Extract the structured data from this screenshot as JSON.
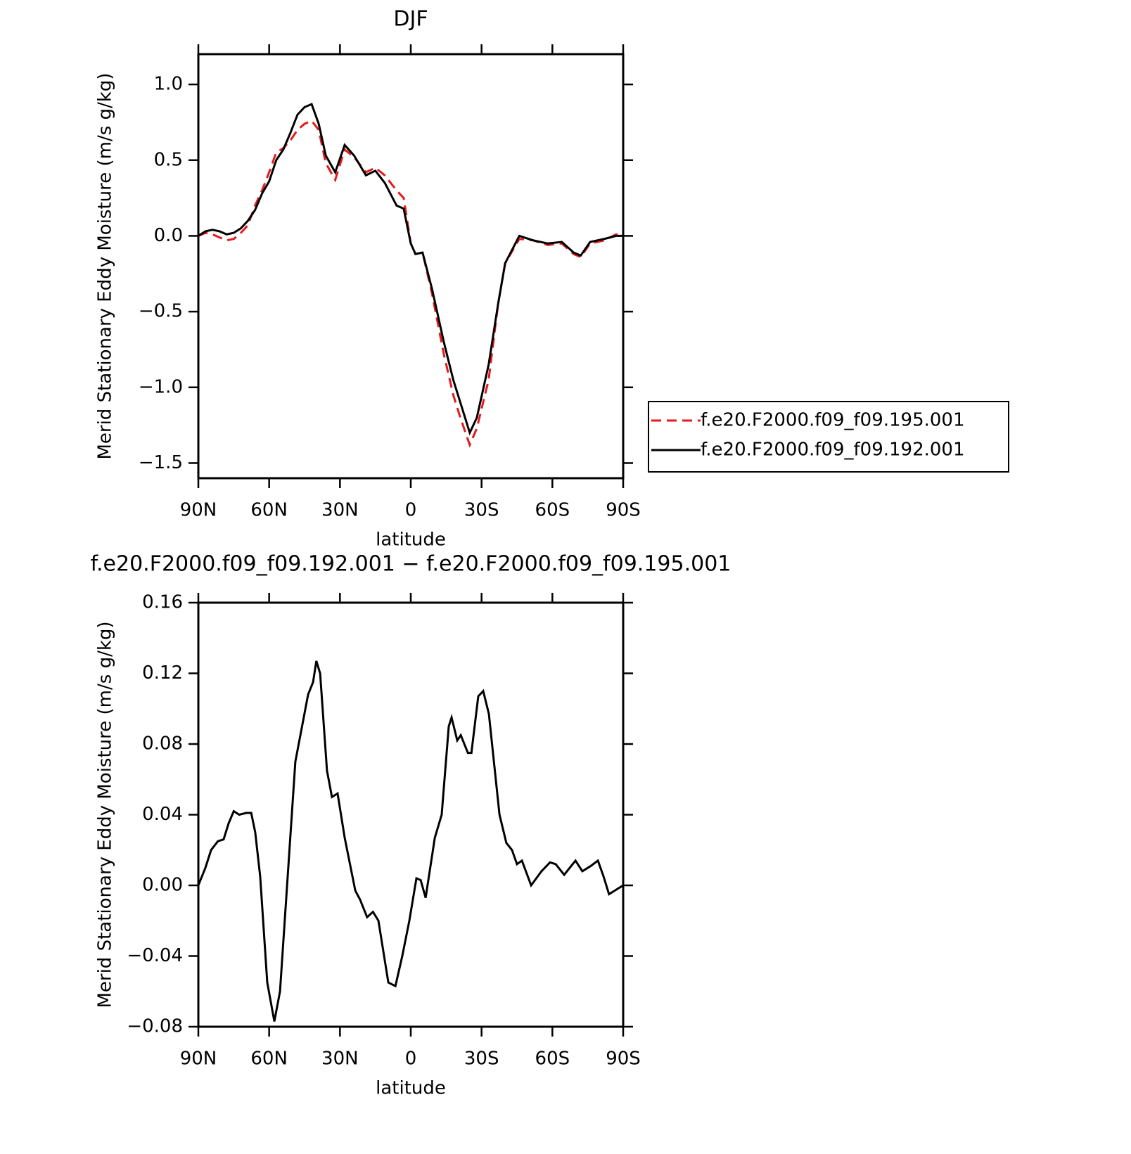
{
  "chart_data": [
    {
      "type": "line",
      "title": "DJF",
      "xlabel": "latitude",
      "ylabel": "Merid Stationary Eddy Moisture (m/s g/kg)",
      "x": [
        90,
        87,
        84,
        81,
        78,
        75,
        72,
        69,
        66,
        63,
        60,
        57,
        54,
        51,
        48,
        45,
        42,
        39,
        36,
        32,
        28,
        24,
        19,
        15,
        11,
        6,
        3,
        0,
        -2,
        -5,
        -9,
        -14,
        -18,
        -21,
        -25,
        -28,
        -33,
        -37,
        -40,
        -46,
        -52,
        -58,
        -64,
        -69,
        -72,
        -76,
        -82,
        -87,
        -90
      ],
      "series": [
        {
          "name": "f.e20.F2000.f09_f09.195.001",
          "color": "#e41a1c",
          "linestyle": "dashed",
          "values": [
            0,
            0.02,
            0.01,
            -0.01,
            -0.03,
            -0.02,
            0.02,
            0.07,
            0.2,
            0.3,
            0.42,
            0.55,
            0.58,
            0.63,
            0.7,
            0.74,
            0.76,
            0.7,
            0.48,
            0.37,
            0.57,
            0.52,
            0.42,
            0.45,
            0.4,
            0.3,
            0.25,
            -0.05,
            -0.12,
            -0.11,
            -0.38,
            -0.78,
            -1.05,
            -1.2,
            -1.38,
            -1.27,
            -0.95,
            -0.45,
            -0.18,
            -0.02,
            -0.03,
            -0.06,
            -0.05,
            -0.12,
            -0.14,
            -0.05,
            -0.03,
            0.01,
            0
          ]
        },
        {
          "name": "f.e20.F2000.f09_f09.192.001",
          "color": "#000000",
          "linestyle": "solid",
          "values": [
            0,
            0.03,
            0.04,
            0.03,
            0.01,
            0.02,
            0.05,
            0.1,
            0.17,
            0.28,
            0.36,
            0.5,
            0.57,
            0.68,
            0.8,
            0.85,
            0.87,
            0.74,
            0.53,
            0.42,
            0.6,
            0.53,
            0.4,
            0.43,
            0.35,
            0.2,
            0.18,
            -0.05,
            -0.12,
            -0.11,
            -0.35,
            -0.7,
            -0.95,
            -1.1,
            -1.3,
            -1.2,
            -0.85,
            -0.45,
            -0.18,
            0,
            -0.03,
            -0.05,
            -0.04,
            -0.11,
            -0.13,
            -0.04,
            -0.02,
            0,
            0
          ]
        }
      ],
      "xlim": [
        90,
        -90
      ],
      "xticks": [
        {
          "value": 90,
          "label": "90N"
        },
        {
          "value": 60,
          "label": "60N"
        },
        {
          "value": 30,
          "label": "30N"
        },
        0,
        {
          "value": -30,
          "label": "30S"
        },
        {
          "value": -60,
          "label": "60S"
        },
        {
          "value": -90,
          "label": "90S"
        }
      ],
      "ylim": [
        -1.6,
        1.2
      ],
      "yticks": [
        {
          "value": 1,
          "label": "1.0"
        },
        0.5,
        {
          "value": 0,
          "label": "0.0"
        },
        {
          "value": -0.5,
          "label": "−0.5"
        },
        {
          "value": -1,
          "label": "−1.0"
        },
        {
          "value": -1.5,
          "label": "−1.5"
        }
      ],
      "legend": "right"
    },
    {
      "type": "line",
      "title": "f.e20.F2000.f09_f09.192.001 − f.e20.F2000.f09_f09.195.001",
      "xlabel": "latitude",
      "ylabel": "Merid Stationary Eddy Moisture (m/s g/kg)",
      "x": [
        90,
        87,
        84.6,
        81.7,
        79.3,
        77.2,
        75,
        72.7,
        69.7,
        67.6,
        65.9,
        63.8,
        60.8,
        57.8,
        55.4,
        52.4,
        48.9,
        43.5,
        41.4,
        40,
        38.4,
        35.5,
        33.4,
        31,
        28,
        23.5,
        21.5,
        18.5,
        16,
        13.7,
        9.5,
        6.5,
        3.6,
        0.6,
        -2.4,
        -4.2,
        -6.3,
        -10.2,
        -13.1,
        -16.1,
        -17.3,
        -19.7,
        -21.2,
        -24.2,
        -25.7,
        -28.6,
        -30.7,
        -33.1,
        -37.6,
        -40.5,
        -42.9,
        -45,
        -47.1,
        -51,
        -55.4,
        -59,
        -61.4,
        -65,
        -69.8,
        -72.7,
        -76.3,
        -79.3,
        -81.7,
        -84,
        -86.4,
        -90
      ],
      "color": "#000000",
      "linestyle": "solid",
      "values": [
        0,
        0.01,
        0.02,
        0.025,
        0.026,
        0.035,
        0.042,
        0.04,
        0.041,
        0.041,
        0.03,
        0.005,
        -0.055,
        -0.077,
        -0.06,
        0,
        0.07,
        0.108,
        0.115,
        0.127,
        0.12,
        0.065,
        0.05,
        0.052,
        0.027,
        -0.003,
        -0.008,
        -0.018,
        -0.015,
        -0.02,
        -0.055,
        -0.057,
        -0.04,
        -0.02,
        0.004,
        0.003,
        -0.007,
        0.027,
        0.04,
        0.09,
        0.095,
        0.082,
        0.085,
        0.075,
        0.075,
        0.107,
        0.11,
        0.097,
        0.04,
        0.024,
        0.02,
        0.012,
        0.014,
        0,
        0.008,
        0.013,
        0.012,
        0.006,
        0.014,
        0.008,
        0.011,
        0.014,
        0.005,
        -0.005,
        -0.003,
        0
      ],
      "xlim": [
        90,
        -90
      ],
      "xticks": [
        {
          "value": 90,
          "label": "90N"
        },
        {
          "value": 60,
          "label": "60N"
        },
        {
          "value": 30,
          "label": "30N"
        },
        0,
        {
          "value": -30,
          "label": "30S"
        },
        {
          "value": -60,
          "label": "60S"
        },
        {
          "value": -90,
          "label": "90S"
        }
      ],
      "ylim": [
        -0.08,
        0.16
      ],
      "yticks": [
        0.16,
        0.12,
        0.08,
        0.04,
        {
          "value": 0,
          "label": "0.00"
        },
        {
          "value": -0.04,
          "label": "−0.04"
        },
        {
          "value": -0.08,
          "label": "−0.08"
        }
      ]
    }
  ]
}
